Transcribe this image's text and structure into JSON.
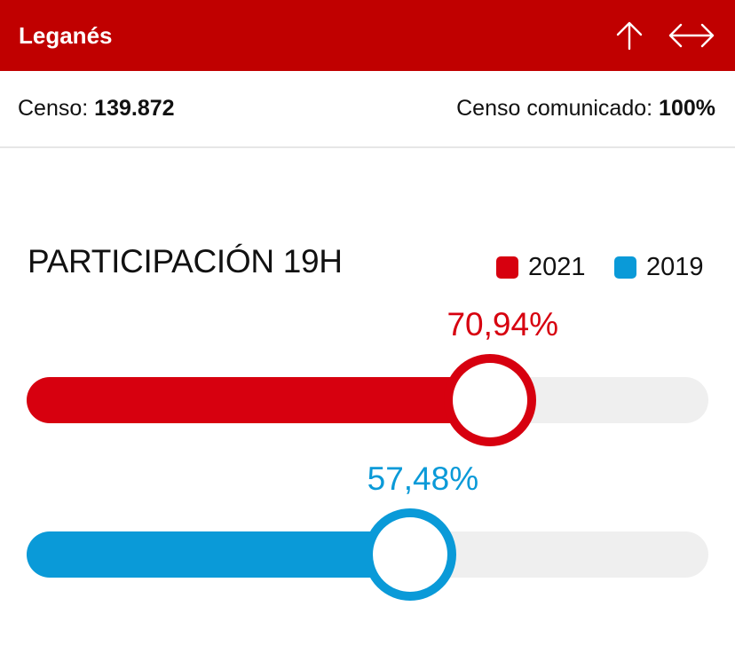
{
  "header": {
    "title": "Leganés",
    "icons": [
      "arrow-up-icon",
      "arrow-left-right-icon"
    ]
  },
  "census": {
    "label": "Censo:",
    "value": "139.872",
    "reported_label": "Censo comunicado:",
    "reported_value": "100%"
  },
  "section": {
    "title": "PARTICIPACIÓN 19H"
  },
  "legend": [
    {
      "label": "2021",
      "color": "#d7000f"
    },
    {
      "label": "2019",
      "color": "#0a9ad8"
    }
  ],
  "sliders": [
    {
      "year": "2021",
      "value_label": "70,94%",
      "fraction": 0.68,
      "color": "#d7000f"
    },
    {
      "year": "2019",
      "value_label": "57,48%",
      "fraction": 0.563,
      "color": "#0a9ad8"
    }
  ],
  "colors": {
    "header_bg": "#c00000",
    "track_bg": "#efefef"
  }
}
